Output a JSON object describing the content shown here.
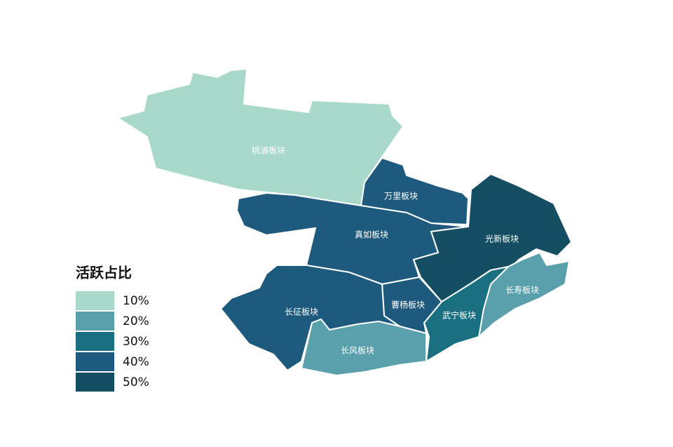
{
  "map": {
    "legend": {
      "title": "活跃占比",
      "items": [
        {
          "value": 10,
          "label": "10%",
          "color": "#a8d8cc"
        },
        {
          "value": 20,
          "label": "20%",
          "color": "#5a9fac"
        },
        {
          "value": 30,
          "label": "30%",
          "color": "#1a7080"
        },
        {
          "value": 40,
          "label": "40%",
          "color": "#1e5a7e"
        },
        {
          "value": 50,
          "label": "50%",
          "color": "#154d63"
        }
      ]
    },
    "regions": [
      {
        "name": "桃浦板块",
        "value": 10
      },
      {
        "name": "万里板块",
        "value": 40
      },
      {
        "name": "真如板块",
        "value": 40
      },
      {
        "name": "光新板块",
        "value": 50
      },
      {
        "name": "长寿板块",
        "value": 20
      },
      {
        "name": "武宁板块",
        "value": 30
      },
      {
        "name": "曹杨板块",
        "value": 40
      },
      {
        "name": "长征板块",
        "value": 40
      },
      {
        "name": "长风板块",
        "value": 20
      }
    ]
  }
}
